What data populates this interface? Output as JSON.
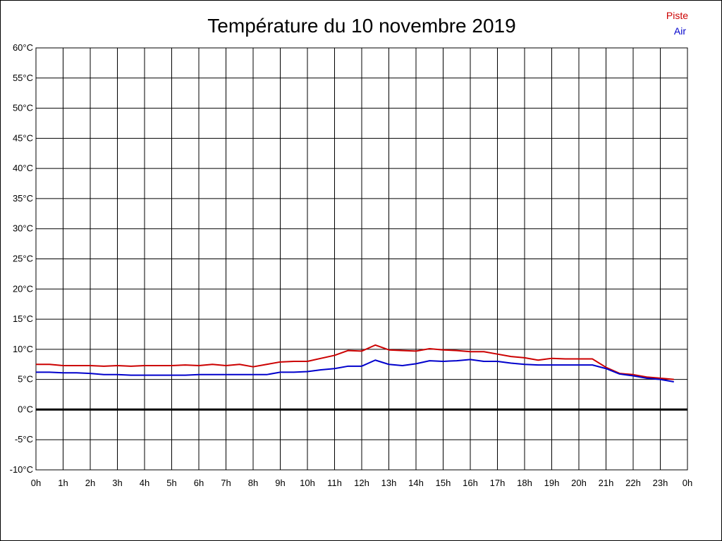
{
  "chart_data": {
    "type": "line",
    "title": "Température du 10 novembre 2019",
    "xlabel": "",
    "ylabel": "",
    "x_tick_labels": [
      "0h",
      "1h",
      "2h",
      "3h",
      "4h",
      "5h",
      "6h",
      "7h",
      "8h",
      "9h",
      "10h",
      "11h",
      "12h",
      "13h",
      "14h",
      "15h",
      "16h",
      "17h",
      "18h",
      "19h",
      "20h",
      "21h",
      "22h",
      "23h",
      "0h"
    ],
    "y_tick_labels": [
      "-10°C",
      "-5°C",
      "0°C",
      "5°C",
      "10°C",
      "15°C",
      "20°C",
      "25°C",
      "30°C",
      "35°C",
      "40°C",
      "45°C",
      "50°C",
      "55°C",
      "60°C"
    ],
    "y_ticks": [
      -10,
      -5,
      0,
      5,
      10,
      15,
      20,
      25,
      30,
      35,
      40,
      45,
      50,
      55,
      60
    ],
    "xlim": [
      0,
      24
    ],
    "ylim": [
      -10,
      60
    ],
    "grid": true,
    "legend_position": "top-right",
    "series": [
      {
        "name": "Piste",
        "color": "#cc0000",
        "x": [
          0.0,
          0.5,
          1.0,
          1.5,
          2.0,
          2.5,
          3.0,
          3.5,
          4.0,
          4.5,
          5.0,
          5.5,
          6.0,
          6.5,
          7.0,
          7.5,
          8.0,
          8.5,
          9.0,
          9.5,
          10.0,
          10.5,
          11.0,
          11.5,
          12.0,
          12.5,
          13.0,
          13.5,
          14.0,
          14.5,
          15.0,
          15.5,
          16.0,
          16.5,
          17.0,
          17.5,
          18.0,
          18.5,
          19.0,
          19.5,
          20.0,
          20.5,
          21.0,
          21.5,
          22.0,
          22.5,
          23.0,
          23.5
        ],
        "values": [
          7.5,
          7.5,
          7.3,
          7.3,
          7.3,
          7.2,
          7.3,
          7.2,
          7.3,
          7.3,
          7.3,
          7.4,
          7.3,
          7.5,
          7.3,
          7.5,
          7.1,
          7.5,
          7.9,
          8.0,
          8.0,
          8.5,
          9.0,
          9.8,
          9.7,
          10.7,
          9.9,
          9.8,
          9.7,
          10.1,
          9.9,
          9.8,
          9.6,
          9.6,
          9.2,
          8.8,
          8.6,
          8.2,
          8.5,
          8.4,
          8.4,
          8.4,
          7.0,
          6.0,
          5.8,
          5.4,
          5.2,
          5.0
        ]
      },
      {
        "name": "Air",
        "color": "#0000cc",
        "x": [
          0.0,
          0.5,
          1.0,
          1.5,
          2.0,
          2.5,
          3.0,
          3.5,
          4.0,
          4.5,
          5.0,
          5.5,
          6.0,
          6.5,
          7.0,
          7.5,
          8.0,
          8.5,
          9.0,
          9.5,
          10.0,
          10.5,
          11.0,
          11.5,
          12.0,
          12.5,
          13.0,
          13.5,
          14.0,
          14.5,
          15.0,
          15.5,
          16.0,
          16.5,
          17.0,
          17.5,
          18.0,
          18.5,
          19.0,
          19.5,
          20.0,
          20.5,
          21.0,
          21.5,
          22.0,
          22.5,
          23.0,
          23.5
        ],
        "values": [
          6.2,
          6.2,
          6.1,
          6.1,
          6.0,
          5.8,
          5.8,
          5.7,
          5.7,
          5.7,
          5.7,
          5.7,
          5.8,
          5.8,
          5.8,
          5.8,
          5.8,
          5.8,
          6.2,
          6.2,
          6.3,
          6.6,
          6.8,
          7.2,
          7.2,
          8.2,
          7.5,
          7.3,
          7.6,
          8.1,
          8.0,
          8.1,
          8.3,
          8.0,
          8.0,
          7.7,
          7.5,
          7.4,
          7.4,
          7.4,
          7.4,
          7.4,
          6.8,
          5.9,
          5.6,
          5.2,
          5.0,
          4.6
        ]
      }
    ]
  }
}
